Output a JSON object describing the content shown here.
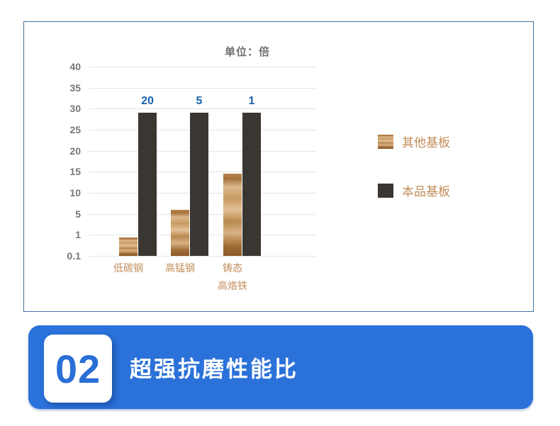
{
  "chart_data": {
    "type": "bar",
    "title": "单位：倍",
    "yticks": [
      "40",
      "35",
      "30",
      "25",
      "20",
      "15",
      "10",
      "5",
      "1",
      "0.1"
    ],
    "categories": [
      "低碳钢",
      "高锰钢",
      "铸态\n高烙铁"
    ],
    "series": [
      {
        "name": "其他基板",
        "style": "gold",
        "values": [
          0.9,
          6,
          14.5
        ]
      },
      {
        "name": "本品基板",
        "style": "dark",
        "values": [
          29,
          29,
          29
        ],
        "data_labels": [
          "20",
          "5",
          "1"
        ]
      }
    ],
    "grid": true,
    "legend_position": "right",
    "axis_note": "non-linear axis, equal spacing per labeled tick"
  },
  "colors": {
    "panel_border": "#4173a3",
    "gridline": "#e4e4e4",
    "ytick_text": "#767676",
    "title_text": "#6f6f6f",
    "bronze_text": "#c28d5b",
    "bar_dark": "#3a3632",
    "value_label_blue": "#1a61ad",
    "banner_blue": "#2b71da",
    "number_blue": "#2a6fd6"
  },
  "banner": {
    "number": "02",
    "title": "超强抗磨性能比"
  }
}
